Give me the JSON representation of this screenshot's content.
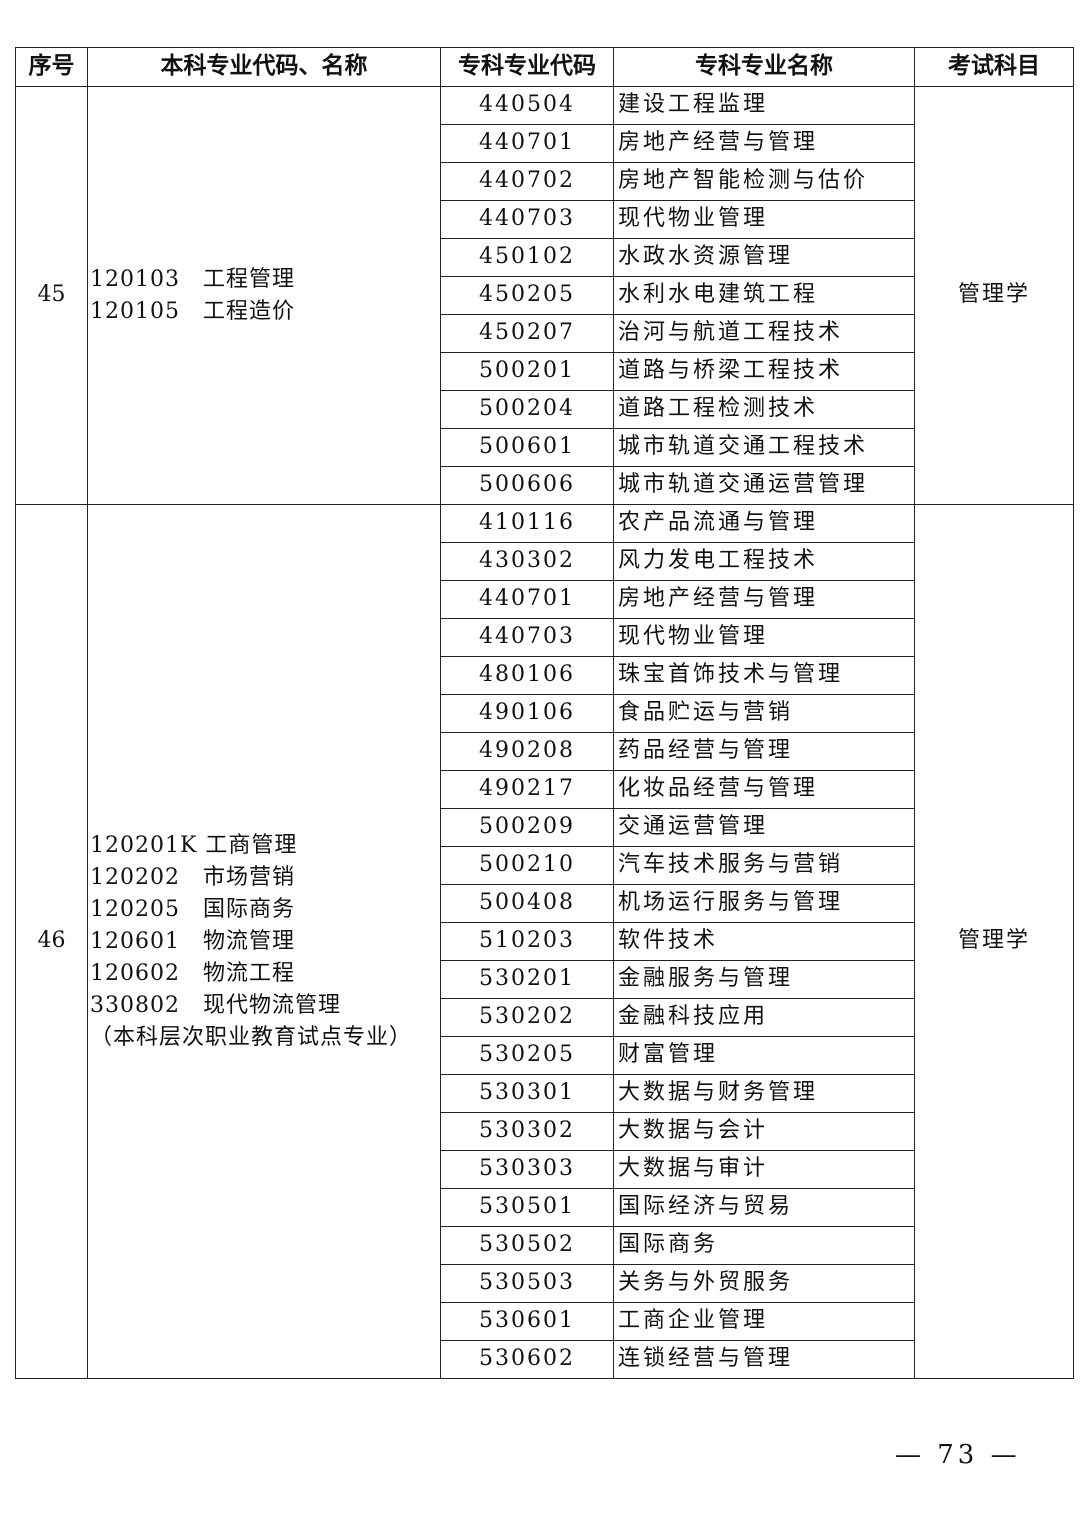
{
  "headers": [
    "序号",
    "本科专业代码、名称",
    "专科专业代码",
    "专科专业名称",
    "考试科目"
  ],
  "groups": [
    {
      "seq": "45",
      "majors": [
        "120103　工程管理",
        "120105　工程造价"
      ],
      "subject": "管理学",
      "rows": [
        [
          "440504",
          "建设工程监理"
        ],
        [
          "440701",
          "房地产经营与管理"
        ],
        [
          "440702",
          "房地产智能检测与估价"
        ],
        [
          "440703",
          "现代物业管理"
        ],
        [
          "450102",
          "水政水资源管理"
        ],
        [
          "450205",
          "水利水电建筑工程"
        ],
        [
          "450207",
          "治河与航道工程技术"
        ],
        [
          "500201",
          "道路与桥梁工程技术"
        ],
        [
          "500204",
          "道路工程检测技术"
        ],
        [
          "500601",
          "城市轨道交通工程技术"
        ],
        [
          "500606",
          "城市轨道交通运营管理"
        ]
      ]
    },
    {
      "seq": "46",
      "majors": [
        "120201K 工商管理",
        "120202　市场营销",
        "120205　国际商务",
        "120601　物流管理",
        "120602　物流工程",
        "330802　现代物流管理",
        "（本科层次职业教育试点专业）"
      ],
      "subject": "管理学",
      "rows": [
        [
          "410116",
          "农产品流通与管理"
        ],
        [
          "430302",
          "风力发电工程技术"
        ],
        [
          "440701",
          "房地产经营与管理"
        ],
        [
          "440703",
          "现代物业管理"
        ],
        [
          "480106",
          "珠宝首饰技术与管理"
        ],
        [
          "490106",
          "食品贮运与营销"
        ],
        [
          "490208",
          "药品经营与管理"
        ],
        [
          "490217",
          "化妆品经营与管理"
        ],
        [
          "500209",
          "交通运营管理"
        ],
        [
          "500210",
          "汽车技术服务与营销"
        ],
        [
          "500408",
          "机场运行服务与管理"
        ],
        [
          "510203",
          "软件技术"
        ],
        [
          "530201",
          "金融服务与管理"
        ],
        [
          "530202",
          "金融科技应用"
        ],
        [
          "530205",
          "财富管理"
        ],
        [
          "530301",
          "大数据与财务管理"
        ],
        [
          "530302",
          "大数据与会计"
        ],
        [
          "530303",
          "大数据与审计"
        ],
        [
          "530501",
          "国际经济与贸易"
        ],
        [
          "530502",
          "国际商务"
        ],
        [
          "530503",
          "关务与外贸服务"
        ],
        [
          "530601",
          "工商企业管理"
        ],
        [
          "530602",
          "连锁经营与管理"
        ]
      ]
    }
  ],
  "page_number": "— 73 —"
}
